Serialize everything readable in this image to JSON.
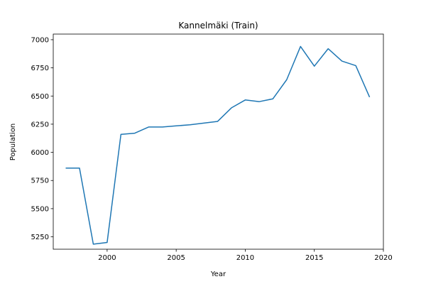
{
  "chart_data": {
    "type": "line",
    "title": "Kannelmäki (Train)",
    "xlabel": "Year",
    "ylabel": "Population",
    "xlim": [
      1996.1,
      2020.0
    ],
    "ylim": [
      5140,
      7050
    ],
    "xticks": [
      2000,
      2005,
      2010,
      2015,
      2020
    ],
    "yticks": [
      5250,
      5500,
      5750,
      6000,
      6250,
      6500,
      6750,
      7000
    ],
    "grid": false,
    "line_color": "#1f77b4",
    "series": [
      {
        "x": [
          1997,
          1998,
          1999,
          2000,
          2001,
          2002,
          2003,
          2004,
          2005,
          2006,
          2007,
          2008,
          2009,
          2010,
          2011,
          2012,
          2013,
          2014,
          2015,
          2016,
          2017,
          2018,
          2019
        ],
        "values": [
          5860,
          5860,
          5185,
          5200,
          6160,
          6170,
          6225,
          6225,
          6235,
          6245,
          6260,
          6275,
          6395,
          6465,
          6450,
          6475,
          6645,
          6940,
          6765,
          6920,
          6810,
          6770,
          6490
        ]
      }
    ]
  }
}
